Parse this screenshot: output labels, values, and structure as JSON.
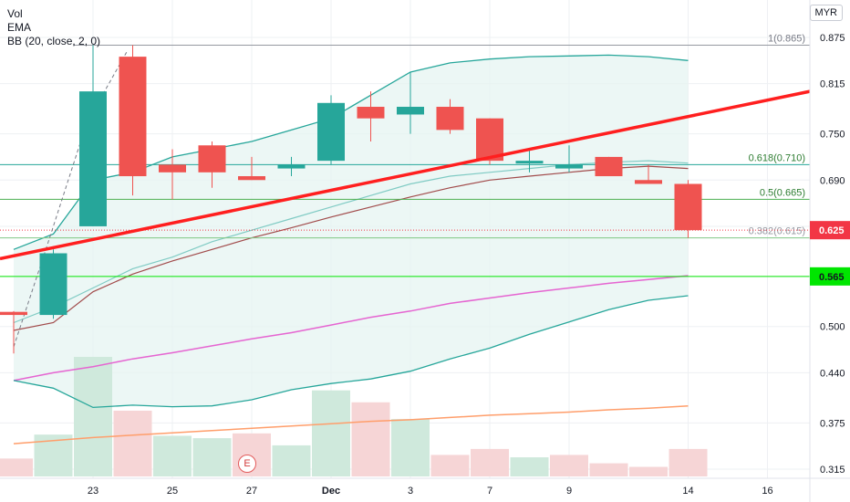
{
  "legend": {
    "vol": "Vol",
    "ema": "EMA",
    "bb": "BB (20, close, 2, 0)"
  },
  "currency": "MYR",
  "earnings_marker": "E",
  "colors": {
    "up": "#26a69a",
    "down": "#ef5350",
    "trendline": "#ff1f1f",
    "bb_band": "#26a69a",
    "bb_fill": "#e6f4f1",
    "ema_fast": "#80cbc4",
    "ema_mid": "#a14b4b",
    "ema_pink": "#e565d1",
    "ema_orange": "#ff9e6b",
    "price_label": "#f23645",
    "green_line": "#00e600"
  },
  "chart_data": {
    "type": "candlestick",
    "x_ticks": [
      "23",
      "25",
      "27",
      "Dec",
      "3",
      "7",
      "9",
      "14",
      "16"
    ],
    "y_ticks": [
      "0.875",
      "0.815",
      "0.750",
      "0.690",
      "0.630",
      "0.565",
      "0.500",
      "0.440",
      "0.375",
      "0.315"
    ],
    "ylim": [
      0.31,
      0.88
    ],
    "candles": [
      {
        "o": 0.519,
        "h": 0.52,
        "l": 0.465,
        "c": 0.515
      },
      {
        "o": 0.515,
        "h": 0.6,
        "l": 0.51,
        "c": 0.595
      },
      {
        "o": 0.63,
        "h": 0.865,
        "l": 0.63,
        "c": 0.805
      },
      {
        "o": 0.85,
        "h": 0.865,
        "l": 0.67,
        "c": 0.695
      },
      {
        "o": 0.71,
        "h": 0.73,
        "l": 0.665,
        "c": 0.7
      },
      {
        "o": 0.735,
        "h": 0.74,
        "l": 0.68,
        "c": 0.7
      },
      {
        "o": 0.695,
        "h": 0.72,
        "l": 0.69,
        "c": 0.69
      },
      {
        "o": 0.705,
        "h": 0.72,
        "l": 0.695,
        "c": 0.71
      },
      {
        "o": 0.715,
        "h": 0.8,
        "l": 0.71,
        "c": 0.79
      },
      {
        "o": 0.785,
        "h": 0.805,
        "l": 0.74,
        "c": 0.77
      },
      {
        "o": 0.775,
        "h": 0.83,
        "l": 0.75,
        "c": 0.785
      },
      {
        "o": 0.785,
        "h": 0.795,
        "l": 0.75,
        "c": 0.755
      },
      {
        "o": 0.77,
        "h": 0.77,
        "l": 0.71,
        "c": 0.715
      },
      {
        "o": 0.715,
        "h": 0.73,
        "l": 0.7,
        "c": 0.715
      },
      {
        "o": 0.705,
        "h": 0.735,
        "l": 0.7,
        "c": 0.71
      },
      {
        "o": 0.72,
        "h": 0.72,
        "l": 0.695,
        "c": 0.695
      },
      {
        "o": 0.69,
        "h": 0.71,
        "l": 0.685,
        "c": 0.685
      },
      {
        "o": 0.685,
        "h": 0.69,
        "l": 0.615,
        "c": 0.625
      }
    ],
    "volume": [
      {
        "v": 0.15,
        "dir": "down"
      },
      {
        "v": 0.35,
        "dir": "up"
      },
      {
        "v": 1.0,
        "dir": "up"
      },
      {
        "v": 0.55,
        "dir": "down"
      },
      {
        "v": 0.34,
        "dir": "up"
      },
      {
        "v": 0.32,
        "dir": "up"
      },
      {
        "v": 0.36,
        "dir": "down"
      },
      {
        "v": 0.26,
        "dir": "up"
      },
      {
        "v": 0.72,
        "dir": "up"
      },
      {
        "v": 0.62,
        "dir": "down"
      },
      {
        "v": 0.48,
        "dir": "up"
      },
      {
        "v": 0.18,
        "dir": "down"
      },
      {
        "v": 0.23,
        "dir": "down"
      },
      {
        "v": 0.16,
        "dir": "up"
      },
      {
        "v": 0.18,
        "dir": "down"
      },
      {
        "v": 0.11,
        "dir": "down"
      },
      {
        "v": 0.08,
        "dir": "down"
      },
      {
        "v": 0.23,
        "dir": "down"
      }
    ],
    "bb_upper": [
      0.6,
      0.62,
      0.69,
      0.7,
      0.72,
      0.73,
      0.74,
      0.755,
      0.77,
      0.8,
      0.83,
      0.842,
      0.847,
      0.85,
      0.851,
      0.852,
      0.85,
      0.845
    ],
    "bb_lower": [
      0.43,
      0.42,
      0.395,
      0.398,
      0.396,
      0.397,
      0.405,
      0.418,
      0.426,
      0.432,
      0.442,
      0.458,
      0.472,
      0.49,
      0.506,
      0.522,
      0.534,
      0.54
    ],
    "ema_fast": [
      0.505,
      0.525,
      0.55,
      0.575,
      0.59,
      0.61,
      0.625,
      0.64,
      0.655,
      0.67,
      0.685,
      0.695,
      0.7,
      0.705,
      0.71,
      0.713,
      0.715,
      0.712
    ],
    "ema_mid": [
      0.495,
      0.505,
      0.545,
      0.568,
      0.585,
      0.6,
      0.615,
      0.628,
      0.642,
      0.655,
      0.668,
      0.68,
      0.69,
      0.695,
      0.7,
      0.705,
      0.708,
      0.705
    ],
    "ema_pink": [
      0.43,
      0.44,
      0.448,
      0.458,
      0.466,
      0.475,
      0.484,
      0.492,
      0.502,
      0.512,
      0.52,
      0.53,
      0.537,
      0.544,
      0.55,
      0.556,
      0.561,
      0.566
    ],
    "ema_orange": [
      0.348,
      0.352,
      0.356,
      0.359,
      0.362,
      0.365,
      0.368,
      0.371,
      0.374,
      0.377,
      0.379,
      0.382,
      0.385,
      0.387,
      0.389,
      0.392,
      0.394,
      0.397
    ],
    "fib_levels": [
      {
        "label": "1(0.865)",
        "value": 0.865
      },
      {
        "label": "0.618(0.710)",
        "value": 0.71
      },
      {
        "label": "0.5(0.665)",
        "value": 0.665
      },
      {
        "label": "0.382(0.615)",
        "value": 0.615
      }
    ],
    "trendline": {
      "start": 0.588,
      "end": 0.805
    },
    "horizontal_line": {
      "value": 0.565,
      "label": "0.565"
    },
    "last_price": {
      "value": 0.625,
      "label": "0.625"
    }
  }
}
